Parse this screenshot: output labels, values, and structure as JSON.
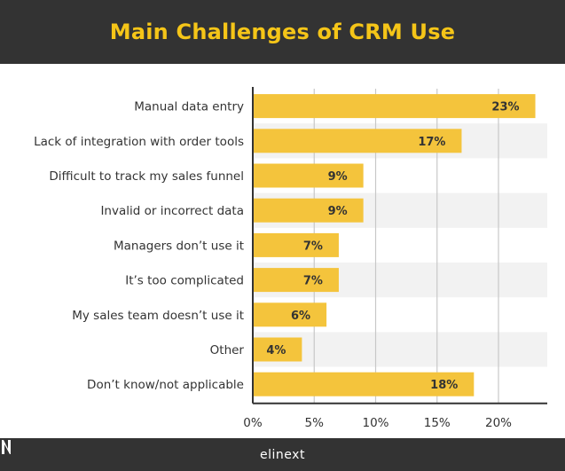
{
  "header": {
    "title": "Main Challenges of CRM Use"
  },
  "footer": {
    "brand": "elinext"
  },
  "colors": {
    "bar": "#f4c43c",
    "band": "#f2f2f2",
    "grid": "#c8c8c8",
    "axis": "#333333",
    "text": "#333333",
    "title": "#f5c518",
    "header_bg": "#333333"
  },
  "chart_data": {
    "type": "bar",
    "orientation": "horizontal",
    "title": "Main Challenges of CRM Use",
    "categories": [
      "Manual data entry",
      "Lack of integration with order tools",
      "Difficult to track my sales funnel",
      "Invalid or incorrect data",
      "Managers don’t use it",
      "It’s too complicated",
      "My sales team doesn’t use it",
      "Other",
      "Don’t know/not applicable"
    ],
    "values": [
      23,
      17,
      9,
      9,
      7,
      7,
      6,
      4,
      18
    ],
    "data_labels": [
      "23%",
      "17%",
      "9%",
      "9%",
      "7%",
      "7%",
      "6%",
      "4%",
      "18%"
    ],
    "xlim": [
      0,
      24
    ],
    "xticks": [
      0,
      5,
      10,
      15,
      20
    ],
    "xtick_labels": [
      "0%",
      "5%",
      "10%",
      "15%",
      "20%"
    ],
    "grid": true,
    "legend": "none"
  }
}
